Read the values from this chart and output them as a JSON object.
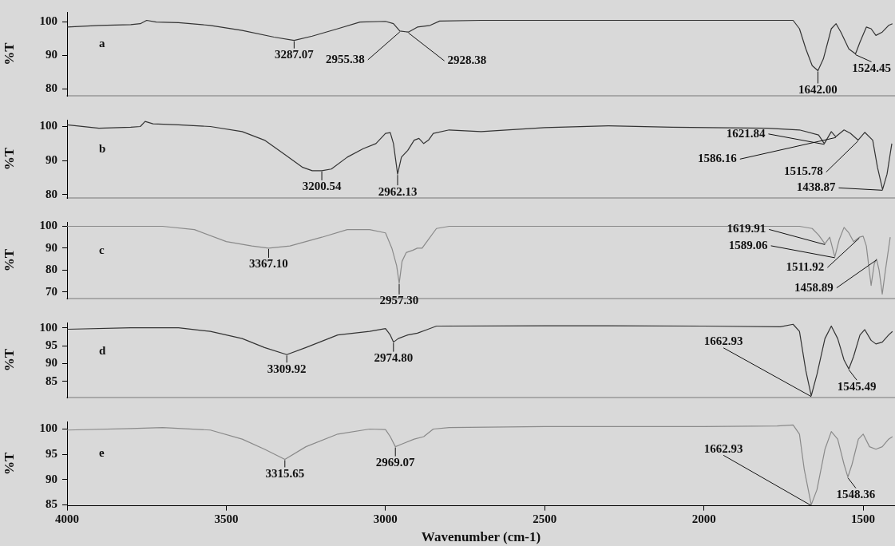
{
  "chart_data": [
    {
      "type": "line",
      "ylabel": "%T",
      "marker": "none",
      "tick_labels": "y",
      "xlim": [
        4000,
        1400
      ],
      "ylim": [
        78,
        103
      ],
      "yticks": [
        80,
        90,
        100
      ],
      "x": [
        4000,
        3900,
        3800,
        3770,
        3750,
        3720,
        3650,
        3550,
        3450,
        3350,
        3287,
        3230,
        3150,
        3080,
        3000,
        2975,
        2955,
        2928,
        2900,
        2860,
        2830,
        2700,
        2000,
        1760,
        1720,
        1700,
        1680,
        1660,
        1642,
        1625,
        1600,
        1585,
        1570,
        1545,
        1524,
        1510,
        1490,
        1475,
        1460,
        1440,
        1420,
        1408
      ],
      "series": [
        {
          "color": "#333333",
          "values": [
            98.5,
            99,
            99.2,
            99.5,
            100.5,
            100,
            99.8,
            99,
            97.5,
            95.5,
            94.5,
            95.8,
            98,
            100,
            100.2,
            99.5,
            97.3,
            97,
            98.5,
            99,
            100.3,
            100.5,
            100.5,
            100.5,
            100.5,
            98,
            92,
            87,
            85.5,
            89,
            98,
            99.5,
            97,
            92,
            90.5,
            94,
            98.5,
            98,
            96,
            97,
            99,
            99.5
          ]
        }
      ],
      "annotations": [
        "a",
        {
          "text": "3287.07",
          "x": 3287,
          "y": 94.5
        },
        {
          "text": "2955.38",
          "x": 2955,
          "y": 97.3
        },
        {
          "text": "2928.38",
          "x": 2928,
          "y": 97
        },
        {
          "text": "1642.00",
          "x": 1642,
          "y": 85.5
        },
        {
          "text": "1524.45",
          "x": 1524,
          "y": 90.5
        }
      ]
    },
    {
      "type": "line",
      "ylabel": "%T",
      "marker": "none",
      "tick_labels": "y",
      "xlim": [
        4000,
        1400
      ],
      "ylim": [
        79,
        102
      ],
      "yticks": [
        80,
        90,
        100
      ],
      "x": [
        4000,
        3900,
        3800,
        3770,
        3755,
        3730,
        3650,
        3550,
        3450,
        3380,
        3320,
        3260,
        3230,
        3200,
        3170,
        3120,
        3070,
        3030,
        3000,
        2985,
        2975,
        2962,
        2950,
        2930,
        2910,
        2895,
        2880,
        2865,
        2850,
        2800,
        2700,
        2500,
        2300,
        2100,
        1800,
        1700,
        1640,
        1622,
        1600,
        1586,
        1560,
        1540,
        1516,
        1495,
        1470,
        1455,
        1439,
        1425,
        1410
      ],
      "series": [
        {
          "color": "#333333",
          "values": [
            100.5,
            99.5,
            99.8,
            100,
            101.5,
            100.8,
            100.5,
            100,
            98.5,
            96,
            92,
            88,
            87,
            87,
            87.5,
            91,
            93.5,
            95,
            98,
            98.2,
            95,
            86,
            91,
            93,
            96,
            96.5,
            95,
            96,
            98,
            99,
            98.5,
            99.7,
            100.2,
            99.8,
            99.5,
            99,
            97.5,
            95,
            98.5,
            97,
            99,
            98,
            96,
            98.3,
            96,
            88,
            81.5,
            86,
            95
          ]
        }
      ],
      "annotations": [
        "b",
        {
          "text": "3200.54",
          "x": 3200,
          "y": 87
        },
        {
          "text": "2962.13",
          "x": 2962,
          "y": 86
        },
        {
          "text": "1621.84",
          "x": 1622,
          "y": 95
        },
        {
          "text": "1586.16",
          "x": 1586,
          "y": 97
        },
        {
          "text": "1515.78",
          "x": 1516,
          "y": 96
        },
        {
          "text": "1438.87",
          "x": 1439,
          "y": 81.5
        }
      ]
    },
    {
      "type": "line",
      "ylabel": "%T",
      "marker": "none",
      "tick_labels": "y",
      "xlim": [
        4000,
        1400
      ],
      "ylim": [
        67,
        102
      ],
      "yticks": [
        70,
        80,
        90,
        100
      ],
      "x": [
        4000,
        3800,
        3700,
        3600,
        3500,
        3420,
        3367,
        3300,
        3200,
        3120,
        3050,
        3000,
        2980,
        2965,
        2957,
        2948,
        2935,
        2915,
        2900,
        2885,
        2870,
        2840,
        2800,
        2500,
        2000,
        1700,
        1660,
        1640,
        1620,
        1605,
        1589,
        1575,
        1560,
        1545,
        1530,
        1512,
        1500,
        1490,
        1475,
        1465,
        1458,
        1450,
        1440,
        1430,
        1415
      ],
      "series": [
        {
          "color": "#8a8a8a",
          "values": [
            100,
            100,
            100,
            98.5,
            93,
            91,
            90,
            91,
            95,
            98.5,
            98.5,
            97,
            90,
            82,
            74,
            84,
            88,
            89,
            90,
            90,
            93,
            99,
            100,
            100,
            100,
            100,
            99,
            96,
            92,
            95,
            86,
            94,
            99.5,
            97,
            93,
            95,
            95.5,
            91,
            73,
            83,
            85,
            80,
            69,
            80,
            95
          ]
        }
      ],
      "annotations": [
        "c",
        {
          "text": "3367.10",
          "x": 3367,
          "y": 90
        },
        {
          "text": "2957.30",
          "x": 2957,
          "y": 74
        },
        {
          "text": "1619.91",
          "x": 1620,
          "y": 92
        },
        {
          "text": "1589.06",
          "x": 1589,
          "y": 86
        },
        {
          "text": "1511.92",
          "x": 1512,
          "y": 95
        },
        {
          "text": "1458.89",
          "x": 1458,
          "y": 85
        }
      ]
    },
    {
      "type": "line",
      "ylabel": "%T",
      "marker": "none",
      "tick_labels": "y",
      "xlim": [
        4000,
        1400
      ],
      "ylim": [
        80.5,
        101.5
      ],
      "yticks": [
        85,
        90,
        95,
        100
      ],
      "x": [
        4000,
        3800,
        3650,
        3550,
        3450,
        3380,
        3310,
        3250,
        3150,
        3050,
        3000,
        2985,
        2975,
        2960,
        2930,
        2900,
        2870,
        2840,
        2500,
        2000,
        1760,
        1720,
        1700,
        1680,
        1663,
        1645,
        1620,
        1600,
        1580,
        1560,
        1545,
        1530,
        1510,
        1495,
        1475,
        1460,
        1440,
        1420,
        1408
      ],
      "series": [
        {
          "color": "#333333",
          "values": [
            99.6,
            100,
            100,
            99,
            97,
            94.5,
            92.5,
            94.5,
            98,
            99,
            99.8,
            98,
            96,
            97,
            98,
            98.5,
            99.5,
            100.5,
            100.6,
            100.5,
            100.3,
            101,
            99,
            88,
            81,
            87,
            97,
            100.5,
            97,
            91,
            88.5,
            92,
            98,
            99.5,
            96.5,
            95.5,
            96,
            98,
            99
          ]
        }
      ],
      "annotations": [
        "d",
        {
          "text": "3309.92",
          "x": 3310,
          "y": 92.5
        },
        {
          "text": "2974.80",
          "x": 2975,
          "y": 96
        },
        {
          "text": "1662.93",
          "x": 1663,
          "y": 81
        },
        {
          "text": "1545.49",
          "x": 1545,
          "y": 88.5
        }
      ]
    },
    {
      "type": "line",
      "ylabel": "%T",
      "xlabel": "Wavenumber (cm-1)",
      "marker": "none",
      "xlim": [
        4000,
        1400
      ],
      "ylim": [
        84.8,
        101.5
      ],
      "xticks": [
        4000,
        3500,
        3000,
        2500,
        2000,
        1500
      ],
      "yticks": [
        85,
        90,
        95,
        100
      ],
      "x": [
        4000,
        3800,
        3700,
        3550,
        3450,
        3380,
        3316,
        3250,
        3150,
        3050,
        3000,
        2985,
        2969,
        2950,
        2910,
        2880,
        2850,
        2800,
        2500,
        2000,
        1770,
        1720,
        1700,
        1685,
        1663,
        1645,
        1620,
        1600,
        1580,
        1560,
        1548,
        1535,
        1515,
        1500,
        1480,
        1460,
        1440,
        1420,
        1408
      ],
      "series": [
        {
          "color": "#8a8a8a",
          "values": [
            99.8,
            100.1,
            100.3,
            99.8,
            98,
            96,
            94,
            96.5,
            99,
            100,
            99.9,
            98.5,
            96.5,
            97,
            98,
            98.5,
            100,
            100.3,
            100.5,
            100.5,
            100.6,
            100.8,
            99,
            92,
            85,
            88,
            96,
            99.5,
            98,
            93,
            90.5,
            93,
            98,
            99,
            96.5,
            96,
            96.5,
            98,
            98.5
          ]
        }
      ],
      "annotations": [
        "e",
        {
          "text": "3315.65",
          "x": 3316,
          "y": 94
        },
        {
          "text": "2969.07",
          "x": 2969,
          "y": 96.5
        },
        {
          "text": "1662.93",
          "x": 1663,
          "y": 85
        },
        {
          "text": "1548.36",
          "x": 1548,
          "y": 90.5
        }
      ]
    }
  ]
}
